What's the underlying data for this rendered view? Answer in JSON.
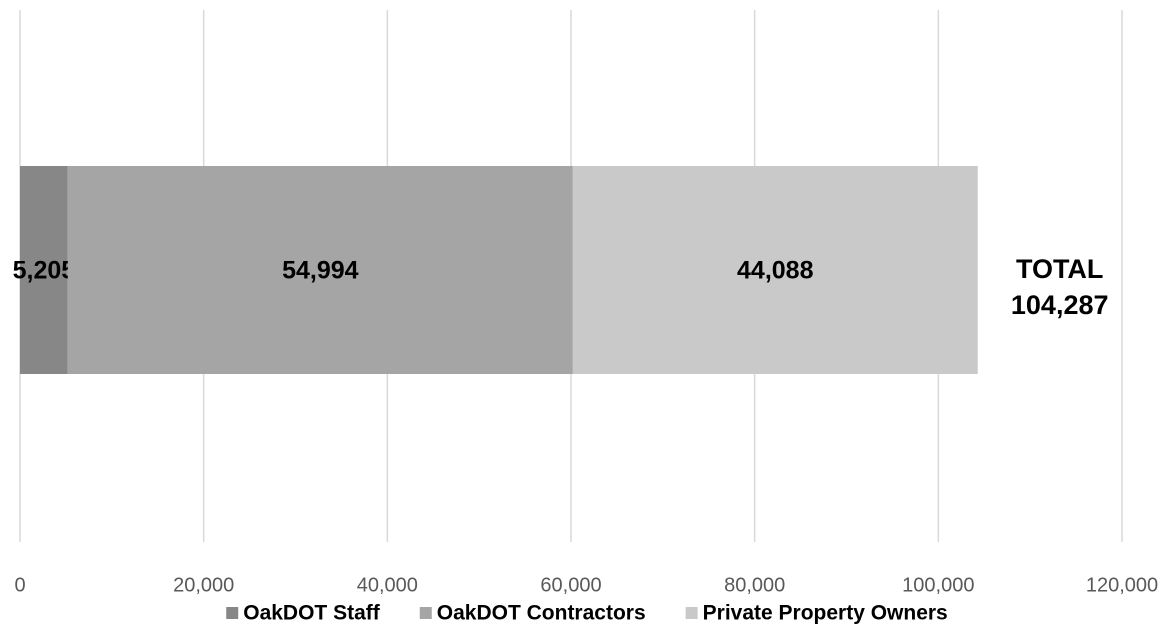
{
  "chart_data": {
    "type": "stacked_barh",
    "categories": [
      null
    ],
    "series": [
      {
        "name": "OakDOT Staff",
        "color": "#878787",
        "values": [
          5205
        ],
        "value_labels": [
          "5,205"
        ]
      },
      {
        "name": "OakDOT Contractors",
        "color": "#a5a5a5",
        "values": [
          54994
        ],
        "value_labels": [
          "54,994"
        ]
      },
      {
        "name": "Private Property Owners",
        "color": "#c9c9c9",
        "values": [
          44088
        ],
        "value_labels": [
          "44,088"
        ]
      }
    ],
    "annotations": [
      "TOTAL",
      "104,287"
    ],
    "xlim": [
      0,
      120000
    ],
    "xticks": [
      0,
      {
        "value": 20000,
        "label": "20,000"
      },
      {
        "value": 40000,
        "label": "40,000"
      },
      {
        "value": 60000,
        "label": "60,000"
      },
      {
        "value": 80000,
        "label": "80,000"
      },
      {
        "value": 100000,
        "label": "100,000"
      },
      {
        "value": 120000,
        "label": "120,000"
      }
    ],
    "grid": true,
    "legend": "bottom"
  }
}
